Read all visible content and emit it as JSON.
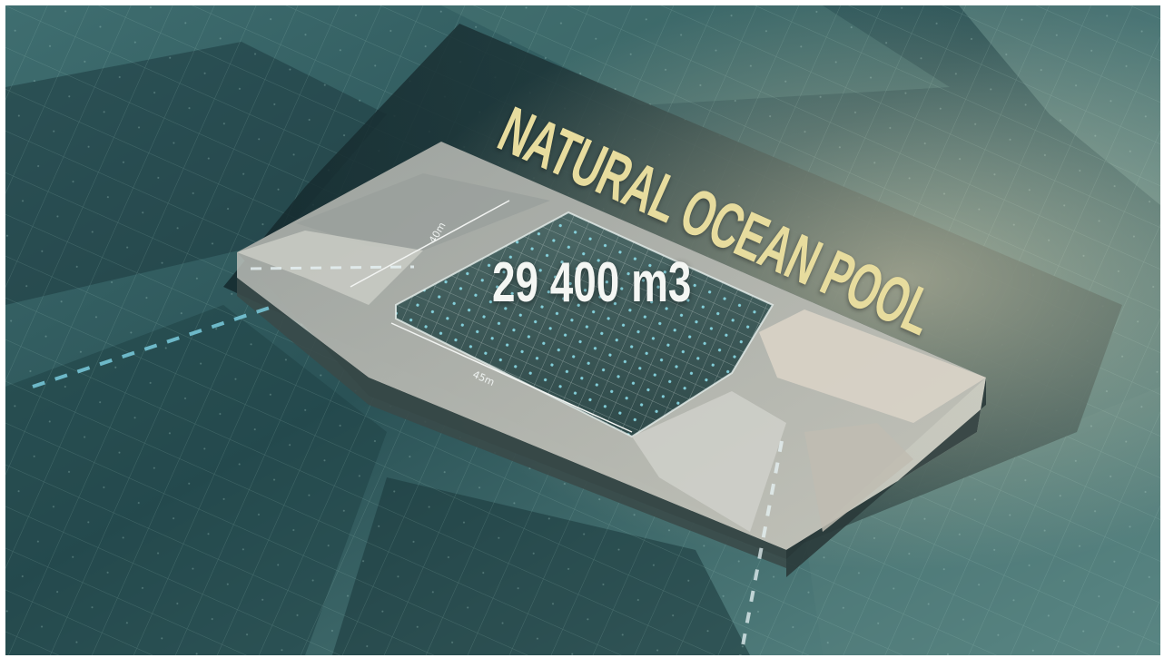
{
  "title": "NATURAL OCEAN POOL",
  "volume_label": "29 400 m3",
  "dimension_width": "40m",
  "dimension_length": "45m",
  "colors": {
    "ocean_dark": "#1f3f44",
    "ocean_mid": "#3d6a6c",
    "ocean_light": "#8fb5b0",
    "title_text": "#e7dc9e",
    "volume_text": "#f4f6f3",
    "structure": "#d7d8d2",
    "dash_light": "#7fd3e6"
  }
}
